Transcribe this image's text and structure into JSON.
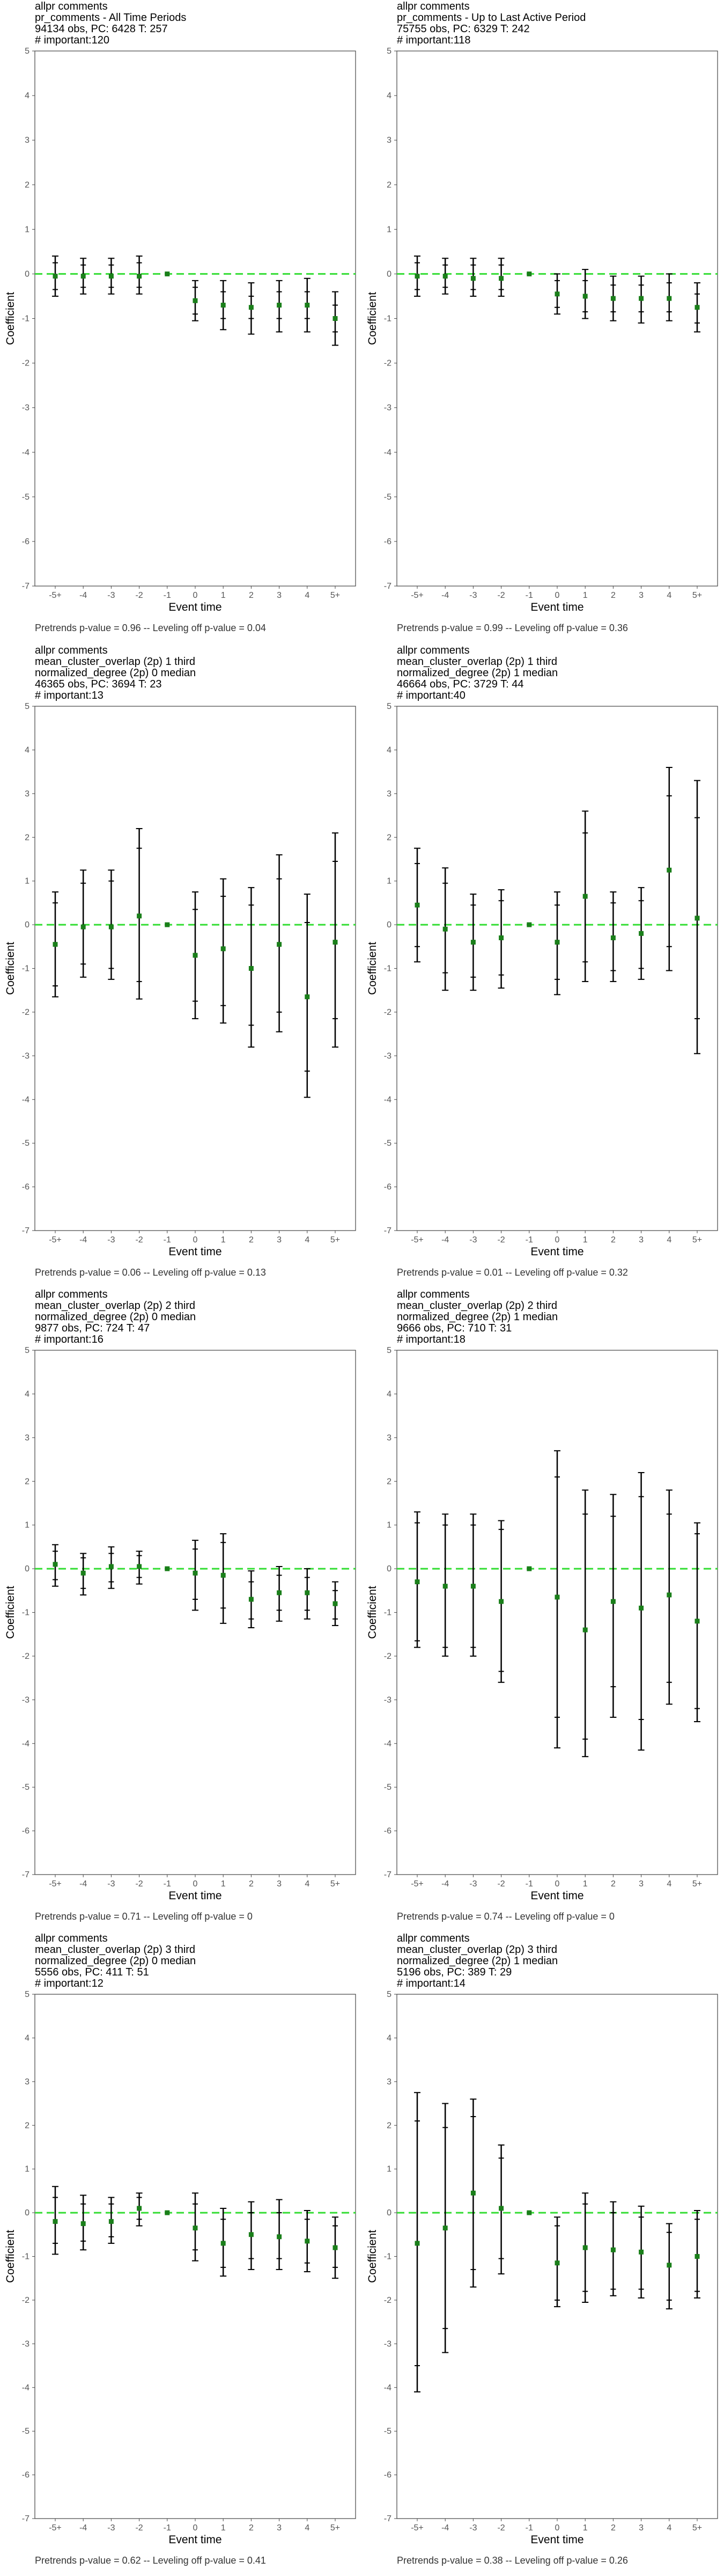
{
  "layout_note": "2 columns x 4 rows of coefficient plots",
  "chart_data": [
    {
      "type": "scatter",
      "title_lines": [
        "allpr comments",
        "pr_comments - All Time Periods",
        "94134 obs, PC: 6428 T: 257",
        "# important:120"
      ],
      "xlabel": "Event time",
      "ylabel": "Coefficient",
      "x_categories": [
        "-5+",
        "-4",
        "-3",
        "-2",
        "-1",
        "0",
        "1",
        "2",
        "3",
        "4",
        "5+"
      ],
      "ylim": [
        -7,
        5
      ],
      "y_ticks": [
        5,
        4,
        3,
        2,
        1,
        0,
        -1,
        -2,
        -3,
        -4,
        -5,
        -6,
        -7
      ],
      "reference_line": 0,
      "estimates": [
        -0.05,
        -0.05,
        -0.05,
        -0.05,
        0,
        -0.6,
        -0.7,
        -0.75,
        -0.7,
        -0.7,
        -1.0
      ],
      "ci_inner": [
        [
          -0.35,
          0.25
        ],
        [
          -0.3,
          0.2
        ],
        [
          -0.3,
          0.2
        ],
        [
          -0.3,
          0.25
        ],
        [
          0,
          0
        ],
        [
          -0.9,
          -0.3
        ],
        [
          -1.0,
          -0.4
        ],
        [
          -1.0,
          -0.5
        ],
        [
          -1.0,
          -0.4
        ],
        [
          -1.0,
          -0.4
        ],
        [
          -1.3,
          -0.7
        ]
      ],
      "ci_outer": [
        [
          -0.5,
          0.4
        ],
        [
          -0.45,
          0.35
        ],
        [
          -0.45,
          0.35
        ],
        [
          -0.45,
          0.4
        ],
        [
          0,
          0
        ],
        [
          -1.05,
          -0.15
        ],
        [
          -1.25,
          -0.15
        ],
        [
          -1.35,
          -0.2
        ],
        [
          -1.3,
          -0.15
        ],
        [
          -1.3,
          -0.1
        ],
        [
          -1.6,
          -0.4
        ]
      ],
      "footnote": "Pretrends p-value = 0.96 -- Leveling off p-value = 0.04"
    },
    {
      "type": "scatter",
      "title_lines": [
        "allpr comments",
        "pr_comments - Up to Last Active Period",
        "75755 obs, PC: 6329 T: 242",
        "# important:118"
      ],
      "xlabel": "Event time",
      "ylabel": "Coefficient",
      "x_categories": [
        "-5+",
        "-4",
        "-3",
        "-2",
        "-1",
        "0",
        "1",
        "2",
        "3",
        "4",
        "5+"
      ],
      "ylim": [
        -7,
        5
      ],
      "y_ticks": [
        5,
        4,
        3,
        2,
        1,
        0,
        -1,
        -2,
        -3,
        -4,
        -5,
        -6,
        -7
      ],
      "reference_line": 0,
      "estimates": [
        -0.05,
        -0.05,
        -0.1,
        -0.1,
        0,
        -0.45,
        -0.5,
        -0.55,
        -0.55,
        -0.55,
        -0.75
      ],
      "ci_inner": [
        [
          -0.35,
          0.25
        ],
        [
          -0.3,
          0.2
        ],
        [
          -0.35,
          0.2
        ],
        [
          -0.35,
          0.2
        ],
        [
          0,
          0
        ],
        [
          -0.75,
          -0.15
        ],
        [
          -0.85,
          -0.15
        ],
        [
          -0.85,
          -0.25
        ],
        [
          -0.85,
          -0.25
        ],
        [
          -0.85,
          -0.2
        ],
        [
          -1.1,
          -0.45
        ]
      ],
      "ci_outer": [
        [
          -0.5,
          0.4
        ],
        [
          -0.45,
          0.35
        ],
        [
          -0.5,
          0.35
        ],
        [
          -0.5,
          0.35
        ],
        [
          0,
          0
        ],
        [
          -0.9,
          0.0
        ],
        [
          -1.0,
          0.1
        ],
        [
          -1.05,
          -0.05
        ],
        [
          -1.1,
          -0.05
        ],
        [
          -1.05,
          0.0
        ],
        [
          -1.3,
          -0.2
        ]
      ],
      "footnote": "Pretrends p-value = 0.99 -- Leveling off p-value = 0.36"
    },
    {
      "type": "scatter",
      "title_lines": [
        "allpr comments",
        "mean_cluster_overlap (2p) 1 third",
        "normalized_degree (2p) 0 median",
        "46365 obs, PC: 3694 T: 23",
        "# important:13"
      ],
      "xlabel": "Event time",
      "ylabel": "Coefficient",
      "x_categories": [
        "-5+",
        "-4",
        "-3",
        "-2",
        "-1",
        "0",
        "1",
        "2",
        "3",
        "4",
        "5+"
      ],
      "ylim": [
        -7,
        5
      ],
      "y_ticks": [
        5,
        4,
        3,
        2,
        1,
        0,
        -1,
        -2,
        -3,
        -4,
        -5,
        -6,
        -7
      ],
      "reference_line": 0,
      "estimates": [
        -0.45,
        -0.05,
        -0.05,
        0.2,
        0,
        -0.7,
        -0.55,
        -1.0,
        -0.45,
        -1.65,
        -0.4
      ],
      "ci_inner": [
        [
          -1.4,
          0.5
        ],
        [
          -0.9,
          0.95
        ],
        [
          -1.0,
          1.0
        ],
        [
          -1.3,
          1.75
        ],
        [
          0,
          0
        ],
        [
          -1.75,
          0.35
        ],
        [
          -1.85,
          0.65
        ],
        [
          -2.3,
          0.45
        ],
        [
          -2.0,
          1.05
        ],
        [
          -3.35,
          0.05
        ],
        [
          -2.15,
          1.45
        ]
      ],
      "ci_outer": [
        [
          -1.65,
          0.75
        ],
        [
          -1.2,
          1.25
        ],
        [
          -1.25,
          1.25
        ],
        [
          -1.7,
          2.2
        ],
        [
          0,
          0
        ],
        [
          -2.15,
          0.75
        ],
        [
          -2.25,
          1.05
        ],
        [
          -2.8,
          0.85
        ],
        [
          -2.45,
          1.6
        ],
        [
          -3.95,
          0.7
        ],
        [
          -2.8,
          2.1
        ]
      ],
      "footnote": "Pretrends p-value = 0.06 -- Leveling off p-value = 0.13"
    },
    {
      "type": "scatter",
      "title_lines": [
        "allpr comments",
        "mean_cluster_overlap (2p) 1 third",
        "normalized_degree (2p) 1 median",
        "46664 obs, PC: 3729 T: 44",
        "# important:40"
      ],
      "xlabel": "Event time",
      "ylabel": "Coefficient",
      "x_categories": [
        "-5+",
        "-4",
        "-3",
        "-2",
        "-1",
        "0",
        "1",
        "2",
        "3",
        "4",
        "5+"
      ],
      "ylim": [
        -7,
        5
      ],
      "y_ticks": [
        5,
        4,
        3,
        2,
        1,
        0,
        -1,
        -2,
        -3,
        -4,
        -5,
        -6,
        -7
      ],
      "reference_line": 0,
      "estimates": [
        0.45,
        -0.1,
        -0.4,
        -0.3,
        0,
        -0.4,
        0.65,
        -0.3,
        -0.2,
        1.25,
        0.15
      ],
      "ci_inner": [
        [
          -0.5,
          1.4
        ],
        [
          -1.1,
          0.95
        ],
        [
          -1.2,
          0.45
        ],
        [
          -1.15,
          0.55
        ],
        [
          0,
          0
        ],
        [
          -1.25,
          0.45
        ],
        [
          -0.85,
          2.1
        ],
        [
          -1.05,
          0.5
        ],
        [
          -1.0,
          0.55
        ],
        [
          -0.5,
          2.95
        ],
        [
          -2.15,
          2.45
        ]
      ],
      "ci_outer": [
        [
          -0.85,
          1.75
        ],
        [
          -1.5,
          1.3
        ],
        [
          -1.5,
          0.7
        ],
        [
          -1.45,
          0.8
        ],
        [
          0,
          0
        ],
        [
          -1.6,
          0.75
        ],
        [
          -1.3,
          2.6
        ],
        [
          -1.3,
          0.75
        ],
        [
          -1.25,
          0.85
        ],
        [
          -1.05,
          3.6
        ],
        [
          -2.95,
          3.3
        ]
      ],
      "footnote": "Pretrends p-value = 0.01 -- Leveling off p-value = 0.32"
    },
    {
      "type": "scatter",
      "title_lines": [
        "allpr comments",
        "mean_cluster_overlap (2p) 2 third",
        "normalized_degree (2p) 0 median",
        "9877 obs, PC: 724 T: 47",
        "# important:16"
      ],
      "xlabel": "Event time",
      "ylabel": "Coefficient",
      "x_categories": [
        "-5+",
        "-4",
        "-3",
        "-2",
        "-1",
        "0",
        "1",
        "2",
        "3",
        "4",
        "5+"
      ],
      "ylim": [
        -7,
        5
      ],
      "y_ticks": [
        5,
        4,
        3,
        2,
        1,
        0,
        -1,
        -2,
        -3,
        -4,
        -5,
        -6,
        -7
      ],
      "reference_line": 0,
      "estimates": [
        0.1,
        -0.1,
        0.05,
        0.05,
        0,
        -0.1,
        -0.15,
        -0.7,
        -0.55,
        -0.55,
        -0.8
      ],
      "ci_inner": [
        [
          -0.25,
          0.4
        ],
        [
          -0.45,
          0.25
        ],
        [
          -0.3,
          0.35
        ],
        [
          -0.2,
          0.3
        ],
        [
          0,
          0
        ],
        [
          -0.7,
          0.45
        ],
        [
          -0.9,
          0.6
        ],
        [
          -1.15,
          -0.3
        ],
        [
          -0.95,
          -0.15
        ],
        [
          -0.95,
          -0.2
        ],
        [
          -1.15,
          -0.5
        ]
      ],
      "ci_outer": [
        [
          -0.4,
          0.55
        ],
        [
          -0.6,
          0.35
        ],
        [
          -0.45,
          0.5
        ],
        [
          -0.35,
          0.4
        ],
        [
          0,
          0
        ],
        [
          -0.95,
          0.65
        ],
        [
          -1.25,
          0.8
        ],
        [
          -1.35,
          -0.05
        ],
        [
          -1.2,
          0.05
        ],
        [
          -1.15,
          -0.0
        ],
        [
          -1.3,
          -0.3
        ]
      ],
      "footnote": "Pretrends p-value = 0.71 -- Leveling off p-value = 0"
    },
    {
      "type": "scatter",
      "title_lines": [
        "allpr comments",
        "mean_cluster_overlap (2p) 2 third",
        "normalized_degree (2p) 1 median",
        "9666 obs, PC: 710 T: 31",
        "# important:18"
      ],
      "xlabel": "Event time",
      "ylabel": "Coefficient",
      "x_categories": [
        "-5+",
        "-4",
        "-3",
        "-2",
        "-1",
        "0",
        "1",
        "2",
        "3",
        "4",
        "5+"
      ],
      "ylim": [
        -7,
        5
      ],
      "y_ticks": [
        5,
        4,
        3,
        2,
        1,
        0,
        -1,
        -2,
        -3,
        -4,
        -5,
        -6,
        -7
      ],
      "reference_line": 0,
      "estimates": [
        -0.3,
        -0.4,
        -0.4,
        -0.75,
        0,
        -0.65,
        -1.4,
        -0.75,
        -0.9,
        -0.6,
        -1.2
      ],
      "ci_inner": [
        [
          -1.65,
          1.05
        ],
        [
          -1.8,
          1.0
        ],
        [
          -1.8,
          1.0
        ],
        [
          -2.35,
          0.9
        ],
        [
          0,
          0
        ],
        [
          -3.4,
          2.1
        ],
        [
          -3.9,
          1.25
        ],
        [
          -2.7,
          1.2
        ],
        [
          -3.45,
          1.65
        ],
        [
          -2.6,
          1.25
        ],
        [
          -3.2,
          0.8
        ]
      ],
      "ci_outer": [
        [
          -1.8,
          1.3
        ],
        [
          -2.0,
          1.25
        ],
        [
          -2.0,
          1.25
        ],
        [
          -2.6,
          1.1
        ],
        [
          0,
          0
        ],
        [
          -4.1,
          2.7
        ],
        [
          -4.3,
          1.8
        ],
        [
          -3.4,
          1.7
        ],
        [
          -4.15,
          2.2
        ],
        [
          -3.1,
          1.8
        ],
        [
          -3.5,
          1.05
        ]
      ],
      "footnote": "Pretrends p-value = 0.74 -- Leveling off p-value = 0"
    },
    {
      "type": "scatter",
      "title_lines": [
        "allpr comments",
        "mean_cluster_overlap (2p) 3 third",
        "normalized_degree (2p) 0 median",
        "5556 obs, PC: 411 T: 51",
        "# important:12"
      ],
      "xlabel": "Event time",
      "ylabel": "Coefficient",
      "x_categories": [
        "-5+",
        "-4",
        "-3",
        "-2",
        "-1",
        "0",
        "1",
        "2",
        "3",
        "4",
        "5+"
      ],
      "ylim": [
        -7,
        5
      ],
      "y_ticks": [
        5,
        4,
        3,
        2,
        1,
        0,
        -1,
        -2,
        -3,
        -4,
        -5,
        -6,
        -7
      ],
      "reference_line": 0,
      "estimates": [
        -0.2,
        -0.25,
        -0.2,
        0.1,
        0,
        -0.35,
        -0.7,
        -0.5,
        -0.55,
        -0.65,
        -0.8
      ],
      "ci_inner": [
        [
          -0.7,
          0.35
        ],
        [
          -0.65,
          0.2
        ],
        [
          -0.55,
          0.2
        ],
        [
          -0.15,
          0.35
        ],
        [
          0,
          0
        ],
        [
          -0.85,
          0.2
        ],
        [
          -1.25,
          -0.15
        ],
        [
          -1.05,
          0.0
        ],
        [
          -1.05,
          0.0
        ],
        [
          -1.15,
          -0.15
        ],
        [
          -1.25,
          -0.3
        ]
      ],
      "ci_outer": [
        [
          -0.95,
          0.6
        ],
        [
          -0.85,
          0.4
        ],
        [
          -0.7,
          0.35
        ],
        [
          -0.3,
          0.45
        ],
        [
          0,
          0
        ],
        [
          -1.1,
          0.45
        ],
        [
          -1.45,
          0.1
        ],
        [
          -1.3,
          0.25
        ],
        [
          -1.3,
          0.3
        ],
        [
          -1.35,
          0.05
        ],
        [
          -1.5,
          -0.1
        ]
      ],
      "footnote": "Pretrends p-value = 0.62 -- Leveling off p-value = 0.41"
    },
    {
      "type": "scatter",
      "title_lines": [
        "allpr comments",
        "mean_cluster_overlap (2p) 3 third",
        "normalized_degree (2p) 1 median",
        "5196 obs, PC: 389 T: 29",
        "# important:14"
      ],
      "xlabel": "Event time",
      "ylabel": "Coefficient",
      "x_categories": [
        "-5+",
        "-4",
        "-3",
        "-2",
        "-1",
        "0",
        "1",
        "2",
        "3",
        "4",
        "5+"
      ],
      "ylim": [
        -7,
        5
      ],
      "y_ticks": [
        5,
        4,
        3,
        2,
        1,
        0,
        -1,
        -2,
        -3,
        -4,
        -5,
        -6,
        -7
      ],
      "reference_line": 0,
      "estimates": [
        -0.7,
        -0.35,
        0.45,
        0.1,
        0,
        -1.15,
        -0.8,
        -0.85,
        -0.9,
        -1.2,
        -1.0
      ],
      "ci_inner": [
        [
          -3.5,
          2.1
        ],
        [
          -2.65,
          1.95
        ],
        [
          -1.3,
          2.2
        ],
        [
          -1.05,
          1.25
        ],
        [
          0,
          0
        ],
        [
          -2.0,
          -0.3
        ],
        [
          -1.8,
          0.2
        ],
        [
          -1.75,
          0.0
        ],
        [
          -1.75,
          -0.1
        ],
        [
          -2.0,
          -0.45
        ],
        [
          -1.8,
          -0.15
        ]
      ],
      "ci_outer": [
        [
          -4.1,
          2.75
        ],
        [
          -3.2,
          2.5
        ],
        [
          -1.7,
          2.6
        ],
        [
          -1.4,
          1.55
        ],
        [
          0,
          0
        ],
        [
          -2.15,
          -0.1
        ],
        [
          -2.05,
          0.45
        ],
        [
          -1.9,
          0.25
        ],
        [
          -1.95,
          0.15
        ],
        [
          -2.2,
          -0.25
        ],
        [
          -1.95,
          0.05
        ]
      ],
      "footnote": "Pretrends p-value = 0.38 -- Leveling off p-value = 0.26"
    }
  ],
  "colors": {
    "ref_line": "#33dd33",
    "point": "#1a7f1a",
    "whisker": "#000000",
    "axis": "#444444",
    "tick_text": "#555555"
  }
}
